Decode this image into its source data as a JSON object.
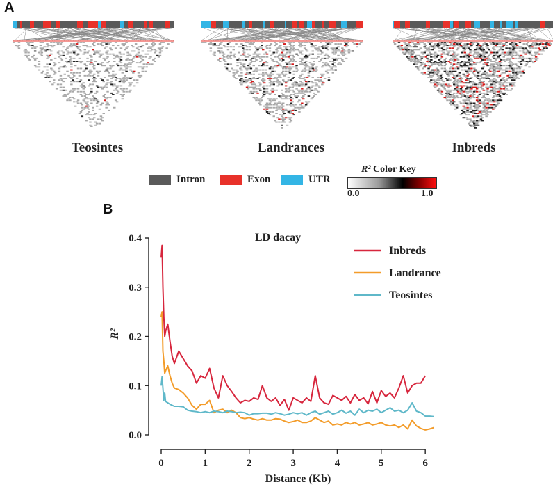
{
  "panel_a": {
    "letter": "A",
    "heatmaps": [
      {
        "label": "Teosintes"
      },
      {
        "label": "Landrances"
      },
      {
        "label": "Inbreds"
      }
    ],
    "gene_legend": [
      {
        "label": "Intron",
        "color": "#5a5a5a"
      },
      {
        "label": "Exon",
        "color": "#e8312a"
      },
      {
        "label": "UTR",
        "color": "#33b5e5"
      }
    ],
    "color_key": {
      "title_symbol": "R²",
      "title_text": "Color Key",
      "min_label": "0.0",
      "max_label": "1.0"
    }
  },
  "panel_b": {
    "letter": "B",
    "chart_data": {
      "type": "line",
      "title": "LD dacay",
      "xlabel": "Distance (Kb)",
      "ylabel": "R²",
      "xlim": [
        0,
        6.25
      ],
      "ylim": [
        0,
        0.4
      ],
      "xticks": [
        "0",
        "1",
        "2",
        "3",
        "4",
        "5",
        "6"
      ],
      "yticks": [
        "0.0",
        "0.1",
        "0.2",
        "0.3",
        "0.4"
      ],
      "legend_position": "top-right",
      "series": [
        {
          "name": "Inbreds",
          "color": "#d7263d",
          "x": [
            0,
            0.02,
            0.04,
            0.06,
            0.08,
            0.1,
            0.15,
            0.2,
            0.25,
            0.3,
            0.4,
            0.5,
            0.6,
            0.7,
            0.8,
            0.9,
            1.0,
            1.1,
            1.2,
            1.3,
            1.4,
            1.5,
            1.6,
            1.7,
            1.8,
            1.9,
            2.0,
            2.1,
            2.2,
            2.3,
            2.4,
            2.5,
            2.6,
            2.7,
            2.8,
            2.9,
            3.0,
            3.1,
            3.2,
            3.3,
            3.4,
            3.5,
            3.6,
            3.7,
            3.8,
            3.9,
            4.0,
            4.1,
            4.2,
            4.3,
            4.4,
            4.5,
            4.6,
            4.7,
            4.8,
            4.9,
            5.0,
            5.1,
            5.2,
            5.3,
            5.4,
            5.5,
            5.6,
            5.7,
            5.8,
            5.9,
            6.0
          ],
          "y": [
            0.36,
            0.385,
            0.3,
            0.24,
            0.2,
            0.21,
            0.225,
            0.19,
            0.16,
            0.145,
            0.17,
            0.155,
            0.14,
            0.13,
            0.105,
            0.12,
            0.115,
            0.135,
            0.095,
            0.075,
            0.12,
            0.1,
            0.088,
            0.075,
            0.065,
            0.07,
            0.068,
            0.075,
            0.072,
            0.1,
            0.075,
            0.068,
            0.075,
            0.06,
            0.072,
            0.05,
            0.075,
            0.07,
            0.065,
            0.075,
            0.068,
            0.12,
            0.075,
            0.065,
            0.062,
            0.08,
            0.075,
            0.07,
            0.078,
            0.065,
            0.082,
            0.07,
            0.075,
            0.063,
            0.088,
            0.065,
            0.09,
            0.078,
            0.085,
            0.075,
            0.095,
            0.12,
            0.085,
            0.1,
            0.105,
            0.105,
            0.12
          ]
        },
        {
          "name": "Landrance",
          "color": "#f39c2a",
          "x": [
            0,
            0.02,
            0.04,
            0.06,
            0.08,
            0.1,
            0.15,
            0.2,
            0.25,
            0.3,
            0.4,
            0.5,
            0.6,
            0.7,
            0.8,
            0.9,
            1.0,
            1.1,
            1.2,
            1.3,
            1.4,
            1.5,
            1.6,
            1.7,
            1.8,
            1.9,
            2.0,
            2.1,
            2.2,
            2.3,
            2.4,
            2.5,
            2.6,
            2.7,
            2.8,
            2.9,
            3.0,
            3.1,
            3.2,
            3.3,
            3.4,
            3.5,
            3.6,
            3.7,
            3.8,
            3.9,
            4.0,
            4.1,
            4.2,
            4.3,
            4.4,
            4.5,
            4.6,
            4.7,
            4.8,
            4.9,
            5.0,
            5.1,
            5.2,
            5.3,
            5.4,
            5.5,
            5.6,
            5.7,
            5.8,
            5.9,
            6.0,
            6.1,
            6.2
          ],
          "y": [
            0.24,
            0.25,
            0.17,
            0.15,
            0.125,
            0.13,
            0.14,
            0.12,
            0.105,
            0.095,
            0.092,
            0.085,
            0.075,
            0.06,
            0.052,
            0.062,
            0.062,
            0.07,
            0.045,
            0.05,
            0.052,
            0.045,
            0.05,
            0.045,
            0.035,
            0.033,
            0.035,
            0.032,
            0.03,
            0.033,
            0.03,
            0.03,
            0.033,
            0.032,
            0.028,
            0.025,
            0.027,
            0.03,
            0.025,
            0.025,
            0.028,
            0.035,
            0.03,
            0.025,
            0.028,
            0.02,
            0.022,
            0.02,
            0.025,
            0.022,
            0.025,
            0.02,
            0.022,
            0.025,
            0.02,
            0.022,
            0.025,
            0.02,
            0.018,
            0.02,
            0.015,
            0.02,
            0.012,
            0.03,
            0.018,
            0.013,
            0.01,
            0.012,
            0.015
          ]
        },
        {
          "name": "Teosintes",
          "color": "#5fb8c9",
          "x": [
            0,
            0.02,
            0.04,
            0.06,
            0.08,
            0.1,
            0.15,
            0.2,
            0.25,
            0.3,
            0.4,
            0.5,
            0.6,
            0.7,
            0.8,
            0.9,
            1.0,
            1.1,
            1.2,
            1.3,
            1.4,
            1.5,
            1.6,
            1.7,
            1.8,
            1.9,
            2.0,
            2.1,
            2.2,
            2.3,
            2.4,
            2.5,
            2.6,
            2.7,
            2.8,
            2.9,
            3.0,
            3.1,
            3.2,
            3.3,
            3.4,
            3.5,
            3.6,
            3.7,
            3.8,
            3.9,
            4.0,
            4.1,
            4.2,
            4.3,
            4.4,
            4.5,
            4.6,
            4.7,
            4.8,
            4.9,
            5.0,
            5.1,
            5.2,
            5.3,
            5.4,
            5.5,
            5.6,
            5.7,
            5.8,
            5.9,
            6.0,
            6.1,
            6.2
          ],
          "y": [
            0.1,
            0.118,
            0.095,
            0.07,
            0.085,
            0.068,
            0.065,
            0.062,
            0.06,
            0.058,
            0.058,
            0.057,
            0.05,
            0.048,
            0.047,
            0.045,
            0.047,
            0.045,
            0.048,
            0.047,
            0.045,
            0.048,
            0.047,
            0.045,
            0.046,
            0.045,
            0.04,
            0.043,
            0.043,
            0.044,
            0.044,
            0.042,
            0.045,
            0.043,
            0.04,
            0.042,
            0.045,
            0.043,
            0.045,
            0.04,
            0.045,
            0.048,
            0.042,
            0.045,
            0.048,
            0.042,
            0.045,
            0.05,
            0.044,
            0.048,
            0.04,
            0.052,
            0.045,
            0.05,
            0.048,
            0.052,
            0.045,
            0.05,
            0.055,
            0.048,
            0.05,
            0.045,
            0.05,
            0.065,
            0.048,
            0.045,
            0.038,
            0.038,
            0.037
          ]
        }
      ]
    }
  }
}
